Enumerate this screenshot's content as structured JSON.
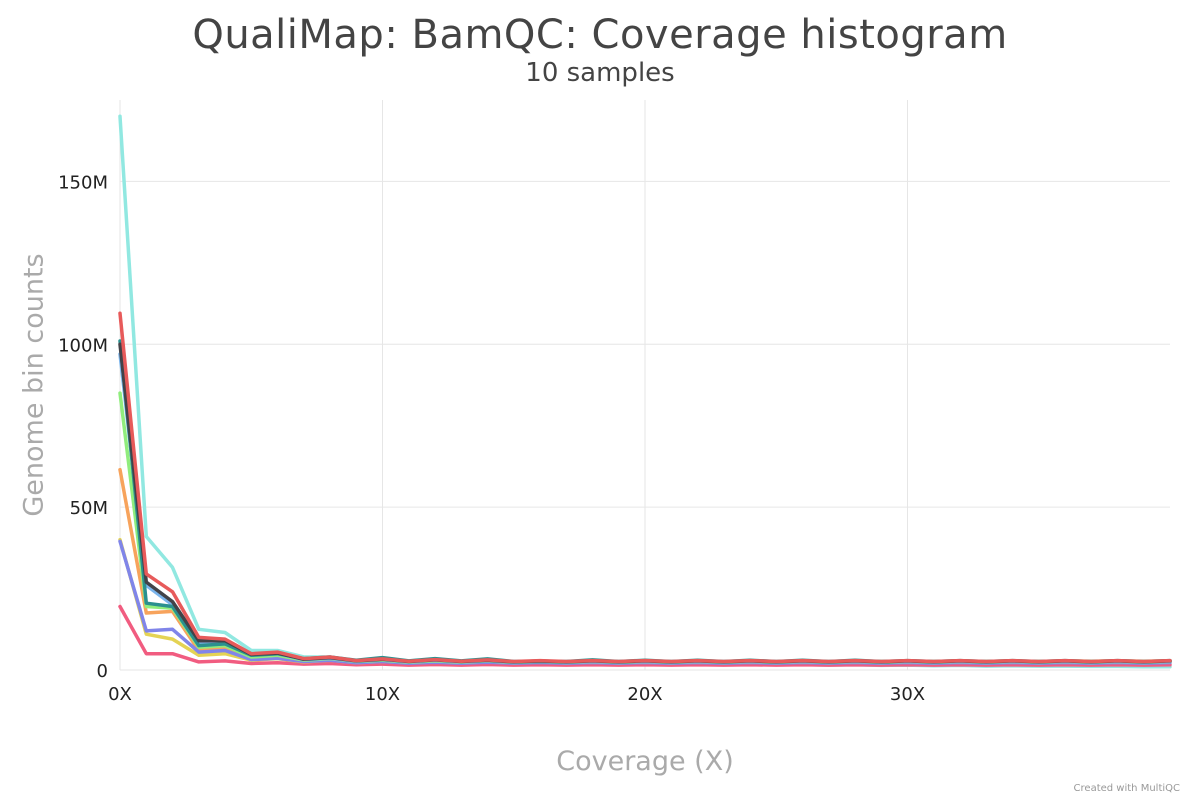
{
  "chart_data": {
    "type": "line",
    "title": "QualiMap: BamQC: Coverage histogram",
    "subtitle": "10 samples",
    "xlabel": "Coverage (X)",
    "ylabel": "Genome bin counts",
    "xlim": [
      0,
      40
    ],
    "ylim": [
      0,
      175000000
    ],
    "xticks": [
      0,
      10,
      20,
      30
    ],
    "xtick_labels": [
      "0X",
      "10X",
      "20X",
      "30X"
    ],
    "yticks": [
      0,
      50000000,
      100000000,
      150000000
    ],
    "ytick_labels": [
      "0",
      "50M",
      "100M",
      "150M"
    ],
    "grid": true,
    "legend": "none",
    "x": [
      0,
      1,
      2,
      3,
      4,
      5,
      6,
      7,
      8,
      9,
      10,
      11,
      12,
      13,
      14,
      15,
      16,
      17,
      18,
      19,
      20,
      21,
      22,
      23,
      24,
      25,
      26,
      27,
      28,
      29,
      30,
      31,
      32,
      33,
      34,
      35,
      36,
      37,
      38,
      39,
      40
    ],
    "series": [
      {
        "color": "#91e8e1",
        "values": [
          170000000,
          41000000,
          31500000,
          12500000,
          11500000,
          6000000,
          6000000,
          4000000,
          4000000,
          2800000,
          3000000,
          2500000,
          3000000,
          2500000,
          2800000,
          2300000,
          2200000,
          2100000,
          2300000,
          2000000,
          2100000,
          1800000,
          1900000,
          1700000,
          1800000,
          1600000,
          1700000,
          1500000,
          1600000,
          1400000,
          1500000,
          1300000,
          1400000,
          1200000,
          1300000,
          1200000,
          1200000,
          1100000,
          1100000,
          1000000,
          1000000
        ]
      },
      {
        "color": "#f15c80",
        "values": [
          19500000,
          5000000,
          5000000,
          2500000,
          2800000,
          2000000,
          2200000,
          1800000,
          2000000,
          1600000,
          1800000,
          1500000,
          1700000,
          1500000,
          1700000,
          1500000,
          1600000,
          1500000,
          1600000,
          1500000,
          1600000,
          1500000,
          1600000,
          1500000,
          1600000,
          1500000,
          1600000,
          1500000,
          1600000,
          1500000,
          1600000,
          1500000,
          1600000,
          1500000,
          1600000,
          1500000,
          1600000,
          1500000,
          1600000,
          1500000,
          1600000
        ]
      },
      {
        "color": "#e4d354",
        "values": [
          40000000,
          11000000,
          9500000,
          4500000,
          5000000,
          3000000,
          3500000,
          2500000,
          3000000,
          2200000,
          2600000,
          2200000,
          2500000,
          2300000,
          2600000,
          2300000,
          2500000,
          2400000,
          2600000,
          2400000,
          2600000,
          2400000,
          2700000,
          2500000,
          2700000,
          2500000,
          2700000,
          2500000,
          2700000,
          2600000,
          2700000,
          2600000,
          2800000,
          2600000,
          2800000,
          2600000,
          2800000,
          2700000,
          2800000,
          2700000,
          2800000
        ]
      },
      {
        "color": "#f7a35c",
        "values": [
          61500000,
          17500000,
          18000000,
          6000000,
          7000000,
          3500000,
          4000000,
          2800000,
          3200000,
          2400000,
          2800000,
          2300000,
          2600000,
          2300000,
          2600000,
          2300000,
          2500000,
          2300000,
          2500000,
          2300000,
          2500000,
          2300000,
          2500000,
          2300000,
          2500000,
          2300000,
          2500000,
          2300000,
          2500000,
          2300000,
          2500000,
          2300000,
          2500000,
          2300000,
          2500000,
          2300000,
          2500000,
          2300000,
          2500000,
          2300000,
          2500000
        ]
      },
      {
        "color": "#8085e9",
        "values": [
          39500000,
          12000000,
          12500000,
          5500000,
          6000000,
          3200000,
          3600000,
          2600000,
          3000000,
          2200000,
          2600000,
          2100000,
          2400000,
          2100000,
          2400000,
          2100000,
          2300000,
          2100000,
          2300000,
          2100000,
          2300000,
          2100000,
          2300000,
          2100000,
          2300000,
          2100000,
          2300000,
          2100000,
          2300000,
          2100000,
          2300000,
          2100000,
          2300000,
          2100000,
          2300000,
          2100000,
          2300000,
          2100000,
          2300000,
          2100000,
          2300000
        ]
      },
      {
        "color": "#90ed7d",
        "values": [
          85000000,
          19500000,
          19000000,
          7000000,
          7500000,
          4000000,
          4500000,
          3000000,
          3500000,
          2600000,
          3000000,
          2400000,
          2800000,
          2400000,
          2800000,
          2300000,
          2600000,
          2300000,
          2600000,
          2300000,
          2600000,
          2300000,
          2600000,
          2300000,
          2600000,
          2300000,
          2600000,
          2300000,
          2600000,
          2300000,
          2600000,
          2300000,
          2600000,
          2300000,
          2600000,
          2300000,
          2600000,
          2300000,
          2600000,
          2300000,
          2600000
        ]
      },
      {
        "color": "#7cb5ec",
        "values": [
          97000000,
          26000000,
          20000000,
          8000000,
          8500000,
          4500000,
          5000000,
          3200000,
          3600000,
          2700000,
          3200000,
          2500000,
          3000000,
          2500000,
          2900000,
          2400000,
          2700000,
          2400000,
          2700000,
          2400000,
          2700000,
          2400000,
          2700000,
          2400000,
          2700000,
          2400000,
          2700000,
          2400000,
          2700000,
          2400000,
          2700000,
          2400000,
          2700000,
          2400000,
          2700000,
          2400000,
          2700000,
          2400000,
          2700000,
          2400000,
          2700000
        ]
      },
      {
        "color": "#2b908f",
        "values": [
          101000000,
          20500000,
          19500000,
          7500000,
          8000000,
          4500000,
          5000000,
          3500000,
          4000000,
          3000000,
          3800000,
          2800000,
          3500000,
          2800000,
          3400000,
          2600000,
          2600000,
          2600000,
          3100000,
          2600000,
          3000000,
          2600000,
          3000000,
          2600000,
          3000000,
          2600000,
          3000000,
          2600000,
          3000000,
          2600000,
          2900000,
          2600000,
          2900000,
          2600000,
          2900000,
          2600000,
          2900000,
          2600000,
          2900000,
          2600000,
          2900000
        ]
      },
      {
        "color": "#434348",
        "values": [
          100000000,
          27000000,
          21000000,
          9000000,
          9000000,
          4800000,
          5200000,
          3300000,
          3800000,
          2800000,
          3300000,
          2600000,
          3100000,
          2600000,
          3000000,
          2500000,
          2800000,
          2500000,
          2800000,
          2500000,
          2800000,
          2500000,
          2800000,
          2500000,
          2800000,
          2500000,
          2800000,
          2500000,
          2800000,
          2500000,
          2800000,
          2500000,
          2800000,
          2500000,
          2800000,
          2500000,
          2800000,
          2500000,
          2800000,
          2500000,
          2800000
        ]
      },
      {
        "color": "#e75a5a",
        "values": [
          109500000,
          29500000,
          24000000,
          10000000,
          9500000,
          5000000,
          5500000,
          3500000,
          4000000,
          2900000,
          3400000,
          2700000,
          3200000,
          2700000,
          3100000,
          2600000,
          2900000,
          2600000,
          2900000,
          2600000,
          2900000,
          2600000,
          2900000,
          2600000,
          2900000,
          2600000,
          2900000,
          2600000,
          2900000,
          2600000,
          2900000,
          2600000,
          2900000,
          2600000,
          2900000,
          2600000,
          2900000,
          2600000,
          2900000,
          2600000,
          2900000
        ]
      }
    ]
  },
  "footer": {
    "credit": "Created with MultiQC"
  }
}
